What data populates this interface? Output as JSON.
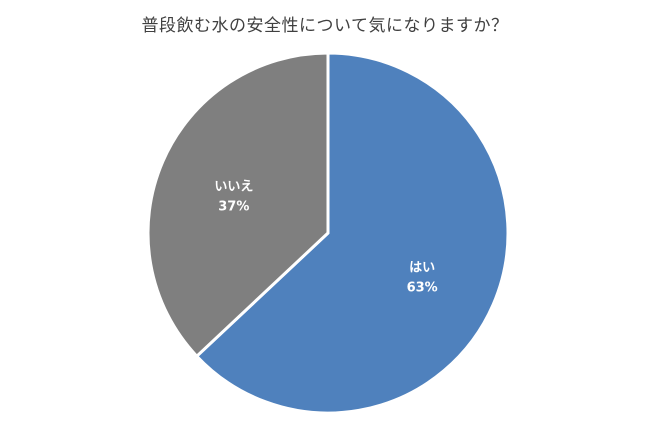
{
  "chart_data": {
    "type": "pie",
    "title": "普段飲む水の安全性について気になりますか？",
    "slices": [
      {
        "label": "はい",
        "value": 63,
        "value_label": "63%",
        "color": "#4f81bd"
      },
      {
        "label": "いいえ",
        "value": 37,
        "value_label": "37%",
        "color": "#7f7f7f"
      }
    ],
    "start": "12 o'clock",
    "direction": "clockwise",
    "legend": "none",
    "slice_border_color": "#ffffff"
  }
}
